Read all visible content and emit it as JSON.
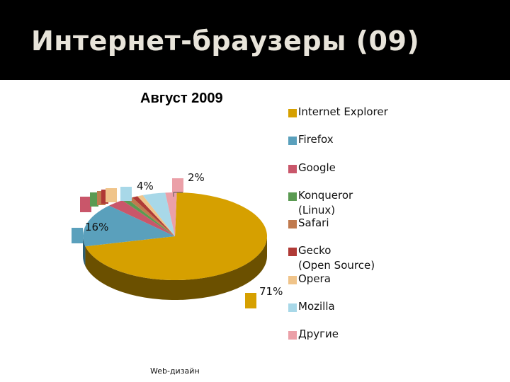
{
  "slide": {
    "title": "Интернет-браузеры (09)",
    "footer": "Web-дизайн"
  },
  "colors": {
    "title_bar": "#000000",
    "title_text": "#e8e4da"
  },
  "chart_data": {
    "type": "pie",
    "title": "Август 2009",
    "legend_position": "right",
    "slices": [
      {
        "label": "Internet Explorer",
        "value": 71,
        "color": "#d6a000",
        "side": "#6b5000"
      },
      {
        "label": "Firefox",
        "value": 16,
        "color": "#5aa0bc",
        "side": "#2f5f73"
      },
      {
        "label": "Google",
        "value": 3,
        "color": "#c9566a",
        "side": "#6e2a36"
      },
      {
        "label": "Konqueror\n(Linux)",
        "value": 1,
        "color": "#5a9a52",
        "side": "#2c5228"
      },
      {
        "label": "Safari",
        "value": 1,
        "color": "#c07a4e",
        "side": "#5e3a24"
      },
      {
        "label": "Gecko\n(Open Source)",
        "value": 1,
        "color": "#b03a36",
        "side": "#5a1c1a"
      },
      {
        "label": "Opera",
        "value": 1,
        "color": "#f0c48a",
        "side": "#7a6244"
      },
      {
        "label": "Mozilla",
        "value": 4,
        "color": "#a8d8e8",
        "side": "#557080"
      },
      {
        "label": "Другие",
        "value": 2,
        "color": "#eba0a8",
        "side": "#765055"
      }
    ],
    "data_labels": [
      "71%",
      "16%",
      "4%",
      "2%"
    ]
  }
}
